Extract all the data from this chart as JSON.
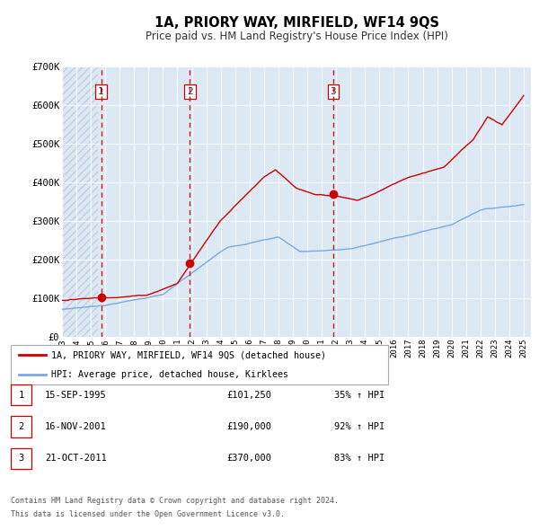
{
  "title": "1A, PRIORY WAY, MIRFIELD, WF14 9QS",
  "subtitle": "Price paid vs. HM Land Registry's House Price Index (HPI)",
  "red_label": "1A, PRIORY WAY, MIRFIELD, WF14 9QS (detached house)",
  "blue_label": "HPI: Average price, detached house, Kirklees",
  "footnote1": "Contains HM Land Registry data © Crown copyright and database right 2024.",
  "footnote2": "This data is licensed under the Open Government Licence v3.0.",
  "purchases": [
    {
      "num": 1,
      "date": "15-SEP-1995",
      "price": 101250,
      "pct": "35%",
      "year": 1995.71
    },
    {
      "num": 2,
      "date": "16-NOV-2001",
      "price": 190000,
      "pct": "92%",
      "year": 2001.87
    },
    {
      "num": 3,
      "date": "21-OCT-2011",
      "price": 370000,
      "pct": "83%",
      "year": 2011.8
    }
  ],
  "red_color": "#cc0000",
  "blue_color": "#7aaadd",
  "bg_color": "#dce9f5",
  "hatch_color": "#c0d0e0",
  "ylim": [
    0,
    700000
  ],
  "yticks": [
    0,
    100000,
    200000,
    300000,
    400000,
    500000,
    600000,
    700000
  ],
  "ytick_labels": [
    "£0",
    "£100K",
    "£200K",
    "£300K",
    "£400K",
    "£500K",
    "£600K",
    "£700K"
  ],
  "xlim_start": 1993.0,
  "xlim_end": 2025.5,
  "xticks": [
    1993,
    1994,
    1995,
    1996,
    1997,
    1998,
    1999,
    2000,
    2001,
    2002,
    2003,
    2004,
    2005,
    2006,
    2007,
    2008,
    2009,
    2010,
    2011,
    2012,
    2013,
    2014,
    2015,
    2016,
    2017,
    2018,
    2019,
    2020,
    2021,
    2022,
    2023,
    2024,
    2025
  ]
}
